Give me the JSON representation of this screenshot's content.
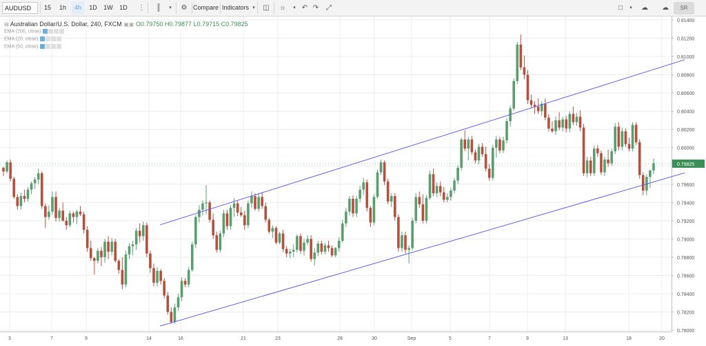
{
  "toolbar": {
    "symbol": "AUDUSD",
    "intervals": [
      "15",
      "1h",
      "4h",
      "1D",
      "1W",
      "1D"
    ],
    "active_interval": "4h",
    "compare_label": "Compare",
    "indicators_label": "Indicators",
    "sr_label": "SR"
  },
  "legend": {
    "title": "Australian Dollar/U.S. Dollar, 240, FXCM",
    "open": "O0.79750",
    "high": "H0.79877",
    "low": "L0.79715",
    "close": "C0.79825",
    "indicators": [
      "EMA (200, close)",
      "EMA (20, close)",
      "EMA (50, close)"
    ]
  },
  "colors": {
    "up": "#5a9e6f",
    "down": "#b5503c",
    "channel": "#5b5bf0",
    "price_badge": "#3d8f58",
    "grid": "#ececec"
  },
  "chart_data": {
    "type": "candlestick",
    "instrument": "AUDUSD",
    "timeframe": "240",
    "last_price": "0.79825",
    "y_ticks": [
      "0.81400",
      "0.81200",
      "0.81000",
      "0.80800",
      "0.80600",
      "0.80400",
      "0.80200",
      "0.80000",
      "0.79800",
      "0.79600",
      "0.79400",
      "0.79200",
      "0.79000",
      "0.78800",
      "0.78600",
      "0.78400",
      "0.78200",
      "0.78000"
    ],
    "ylim": [
      0.7798,
      0.8142
    ],
    "x_ticks": [
      "3",
      "7",
      "9",
      "14",
      "16",
      "21",
      "23",
      "28",
      "30",
      "Sep",
      "5",
      "7",
      "9",
      "13",
      "18",
      "20"
    ],
    "candles": [
      [
        0.7978,
        0.7979,
        0.7969,
        0.7974
      ],
      [
        0.7974,
        0.7986,
        0.7972,
        0.7984
      ],
      [
        0.7984,
        0.7987,
        0.7963,
        0.7966
      ],
      [
        0.7966,
        0.7968,
        0.7944,
        0.7946
      ],
      [
        0.7946,
        0.7949,
        0.7932,
        0.7936
      ],
      [
        0.7936,
        0.7951,
        0.7932,
        0.7947
      ],
      [
        0.7947,
        0.7954,
        0.794,
        0.7944
      ],
      [
        0.7944,
        0.7957,
        0.7941,
        0.7954
      ],
      [
        0.7954,
        0.7963,
        0.7949,
        0.7961
      ],
      [
        0.7961,
        0.7968,
        0.7955,
        0.7965
      ],
      [
        0.7965,
        0.7977,
        0.796,
        0.7972
      ],
      [
        0.7972,
        0.7974,
        0.7933,
        0.7936
      ],
      [
        0.7936,
        0.7939,
        0.7912,
        0.7924
      ],
      [
        0.7924,
        0.7937,
        0.7921,
        0.793
      ],
      [
        0.793,
        0.7952,
        0.7927,
        0.7946
      ],
      [
        0.7946,
        0.7952,
        0.7919,
        0.7923
      ],
      [
        0.7923,
        0.7934,
        0.7919,
        0.7931
      ],
      [
        0.7931,
        0.794,
        0.7919,
        0.792
      ],
      [
        0.792,
        0.7924,
        0.791,
        0.7915
      ],
      [
        0.7915,
        0.7931,
        0.7913,
        0.7928
      ],
      [
        0.7928,
        0.793,
        0.7918,
        0.7924
      ],
      [
        0.7924,
        0.7932,
        0.7916,
        0.793
      ],
      [
        0.793,
        0.7936,
        0.7925,
        0.7927
      ],
      [
        0.7927,
        0.793,
        0.7906,
        0.791
      ],
      [
        0.791,
        0.7914,
        0.7886,
        0.789
      ],
      [
        0.789,
        0.7898,
        0.7876,
        0.7879
      ],
      [
        0.7879,
        0.788,
        0.7861,
        0.7876
      ],
      [
        0.7876,
        0.789,
        0.7873,
        0.7887
      ],
      [
        0.7887,
        0.7891,
        0.787,
        0.788
      ],
      [
        0.788,
        0.79,
        0.7874,
        0.7897
      ],
      [
        0.7897,
        0.7903,
        0.7878,
        0.7886
      ],
      [
        0.7886,
        0.7901,
        0.7882,
        0.7897
      ],
      [
        0.7897,
        0.79,
        0.7874,
        0.7876
      ],
      [
        0.7876,
        0.7878,
        0.7862,
        0.7866
      ],
      [
        0.7866,
        0.788,
        0.7845,
        0.785
      ],
      [
        0.785,
        0.7887,
        0.7847,
        0.7883
      ],
      [
        0.7883,
        0.7895,
        0.7878,
        0.7892
      ],
      [
        0.7892,
        0.7898,
        0.7882,
        0.7894
      ],
      [
        0.7894,
        0.7912,
        0.7888,
        0.7909
      ],
      [
        0.7909,
        0.7917,
        0.7896,
        0.7903
      ],
      [
        0.7903,
        0.7919,
        0.7898,
        0.7915
      ],
      [
        0.7915,
        0.7918,
        0.788,
        0.7884
      ],
      [
        0.7884,
        0.7887,
        0.7863,
        0.7868
      ],
      [
        0.7868,
        0.7873,
        0.7848,
        0.7852
      ],
      [
        0.7852,
        0.7869,
        0.7848,
        0.7865
      ],
      [
        0.7865,
        0.7867,
        0.785,
        0.7854
      ],
      [
        0.7854,
        0.7857,
        0.7835,
        0.7838
      ],
      [
        0.7838,
        0.7842,
        0.7817,
        0.782
      ],
      [
        0.782,
        0.7825,
        0.7807,
        0.7809
      ],
      [
        0.7809,
        0.7829,
        0.7807,
        0.7825
      ],
      [
        0.7825,
        0.784,
        0.7821,
        0.7836
      ],
      [
        0.7836,
        0.7858,
        0.7832,
        0.7854
      ],
      [
        0.7854,
        0.7857,
        0.7847,
        0.785
      ],
      [
        0.785,
        0.7869,
        0.7847,
        0.7866
      ],
      [
        0.7866,
        0.7897,
        0.7864,
        0.7894
      ],
      [
        0.7894,
        0.7926,
        0.789,
        0.7924
      ],
      [
        0.7924,
        0.7937,
        0.7918,
        0.7932
      ],
      [
        0.7932,
        0.7942,
        0.7926,
        0.7939
      ],
      [
        0.7939,
        0.7959,
        0.7927,
        0.794
      ],
      [
        0.794,
        0.7942,
        0.7918,
        0.7921
      ],
      [
        0.7921,
        0.7928,
        0.79,
        0.7904
      ],
      [
        0.7904,
        0.7908,
        0.7885,
        0.7888
      ],
      [
        0.7888,
        0.7909,
        0.7885,
        0.7906
      ],
      [
        0.7906,
        0.7932,
        0.7902,
        0.7928
      ],
      [
        0.7928,
        0.7932,
        0.791,
        0.7914
      ],
      [
        0.7914,
        0.7937,
        0.791,
        0.7934
      ],
      [
        0.7934,
        0.7945,
        0.7924,
        0.7939
      ],
      [
        0.7939,
        0.7942,
        0.7925,
        0.7929
      ],
      [
        0.7929,
        0.7935,
        0.7924,
        0.7926
      ],
      [
        0.7926,
        0.7931,
        0.791,
        0.7915
      ],
      [
        0.7915,
        0.7942,
        0.7912,
        0.7939
      ],
      [
        0.7939,
        0.7952,
        0.7934,
        0.7947
      ],
      [
        0.7947,
        0.795,
        0.7931,
        0.7933
      ],
      [
        0.7933,
        0.795,
        0.793,
        0.7946
      ],
      [
        0.7946,
        0.7951,
        0.7933,
        0.7936
      ],
      [
        0.7936,
        0.794,
        0.7918,
        0.7921
      ],
      [
        0.7921,
        0.7923,
        0.7906,
        0.7908
      ],
      [
        0.7908,
        0.7915,
        0.7901,
        0.7912
      ],
      [
        0.7912,
        0.7914,
        0.7894,
        0.7896
      ],
      [
        0.7896,
        0.7908,
        0.7894,
        0.7906
      ],
      [
        0.7906,
        0.791,
        0.7886,
        0.7889
      ],
      [
        0.7889,
        0.7892,
        0.788,
        0.7884
      ],
      [
        0.7884,
        0.7889,
        0.7879,
        0.7886
      ],
      [
        0.7886,
        0.7894,
        0.788,
        0.7888
      ],
      [
        0.7888,
        0.7905,
        0.7885,
        0.7903
      ],
      [
        0.7903,
        0.7906,
        0.7884,
        0.7887
      ],
      [
        0.7887,
        0.79,
        0.7882,
        0.7896
      ],
      [
        0.7896,
        0.7904,
        0.7893,
        0.79
      ],
      [
        0.79,
        0.7904,
        0.7875,
        0.7878
      ],
      [
        0.7878,
        0.789,
        0.7871,
        0.7885
      ],
      [
        0.7885,
        0.7898,
        0.7881,
        0.7895
      ],
      [
        0.7895,
        0.7898,
        0.7883,
        0.7886
      ],
      [
        0.7886,
        0.7896,
        0.7883,
        0.7893
      ],
      [
        0.7893,
        0.7898,
        0.7886,
        0.789
      ],
      [
        0.789,
        0.7893,
        0.788,
        0.7882
      ],
      [
        0.7882,
        0.7891,
        0.788,
        0.789
      ],
      [
        0.789,
        0.7902,
        0.7886,
        0.7898
      ],
      [
        0.7898,
        0.7921,
        0.7896,
        0.7917
      ],
      [
        0.7917,
        0.7934,
        0.7913,
        0.793
      ],
      [
        0.793,
        0.7947,
        0.7926,
        0.7944
      ],
      [
        0.7944,
        0.7948,
        0.7924,
        0.7928
      ],
      [
        0.7928,
        0.7947,
        0.7924,
        0.7944
      ],
      [
        0.7944,
        0.7958,
        0.794,
        0.7954
      ],
      [
        0.7954,
        0.7967,
        0.7948,
        0.7962
      ],
      [
        0.7962,
        0.7965,
        0.793,
        0.7934
      ],
      [
        0.7934,
        0.7936,
        0.7913,
        0.7918
      ],
      [
        0.7918,
        0.7949,
        0.7915,
        0.7946
      ],
      [
        0.7946,
        0.7976,
        0.7944,
        0.7973
      ],
      [
        0.7973,
        0.7987,
        0.797,
        0.7984
      ],
      [
        0.7984,
        0.7986,
        0.7959,
        0.7963
      ],
      [
        0.7963,
        0.7966,
        0.7938,
        0.7941
      ],
      [
        0.7941,
        0.795,
        0.7935,
        0.7947
      ],
      [
        0.7947,
        0.795,
        0.792,
        0.7924
      ],
      [
        0.7924,
        0.7927,
        0.7886,
        0.789
      ],
      [
        0.789,
        0.7908,
        0.7886,
        0.7904
      ],
      [
        0.7904,
        0.7908,
        0.7884,
        0.7888
      ],
      [
        0.7888,
        0.7893,
        0.7873,
        0.789
      ],
      [
        0.789,
        0.7923,
        0.7888,
        0.792
      ],
      [
        0.792,
        0.795,
        0.7917,
        0.7946
      ],
      [
        0.7946,
        0.7952,
        0.7934,
        0.7938
      ],
      [
        0.7938,
        0.7949,
        0.7917,
        0.792
      ],
      [
        0.792,
        0.7948,
        0.7917,
        0.7945
      ],
      [
        0.7945,
        0.7975,
        0.7943,
        0.7971
      ],
      [
        0.7971,
        0.7977,
        0.7947,
        0.795
      ],
      [
        0.795,
        0.7962,
        0.7946,
        0.7958
      ],
      [
        0.7958,
        0.7963,
        0.7947,
        0.7951
      ],
      [
        0.7951,
        0.7957,
        0.794,
        0.7943
      ],
      [
        0.7943,
        0.795,
        0.794,
        0.7946
      ],
      [
        0.7946,
        0.7956,
        0.7942,
        0.7953
      ],
      [
        0.7953,
        0.7967,
        0.795,
        0.7964
      ],
      [
        0.7964,
        0.7981,
        0.796,
        0.7978
      ],
      [
        0.7978,
        0.8011,
        0.7975,
        0.8009
      ],
      [
        0.8009,
        0.8019,
        0.7996,
        0.7999
      ],
      [
        0.7999,
        0.8012,
        0.7986,
        0.8009
      ],
      [
        0.8009,
        0.8013,
        0.7992,
        0.7995
      ],
      [
        0.7995,
        0.7998,
        0.7983,
        0.7986
      ],
      [
        0.7986,
        0.8004,
        0.7982,
        0.8001
      ],
      [
        0.8001,
        0.8005,
        0.799,
        0.7993
      ],
      [
        0.7993,
        0.8001,
        0.7974,
        0.7977
      ],
      [
        0.7977,
        0.7982,
        0.7964,
        0.7967
      ],
      [
        0.7967,
        0.8003,
        0.7964,
        0.8
      ],
      [
        0.8,
        0.8013,
        0.7989,
        0.8009
      ],
      [
        0.8009,
        0.8012,
        0.7994,
        0.7997
      ],
      [
        0.7997,
        0.8012,
        0.7994,
        0.8008
      ],
      [
        0.8008,
        0.8032,
        0.8005,
        0.8029
      ],
      [
        0.8029,
        0.8046,
        0.8023,
        0.8043
      ],
      [
        0.8043,
        0.8076,
        0.8041,
        0.8073
      ],
      [
        0.8073,
        0.8116,
        0.807,
        0.8113
      ],
      [
        0.8113,
        0.8124,
        0.8085,
        0.8088
      ],
      [
        0.8088,
        0.8101,
        0.8075,
        0.808
      ],
      [
        0.808,
        0.8085,
        0.8048,
        0.8052
      ],
      [
        0.8052,
        0.8058,
        0.8044,
        0.8047
      ],
      [
        0.8047,
        0.8051,
        0.8037,
        0.8045
      ],
      [
        0.8045,
        0.8054,
        0.8037,
        0.804
      ],
      [
        0.804,
        0.8051,
        0.8035,
        0.8048
      ],
      [
        0.8048,
        0.8054,
        0.803,
        0.8033
      ],
      [
        0.8033,
        0.8037,
        0.8018,
        0.8021
      ],
      [
        0.8021,
        0.8029,
        0.8016,
        0.8018
      ],
      [
        0.8018,
        0.8034,
        0.8014,
        0.803
      ],
      [
        0.803,
        0.8039,
        0.8019,
        0.8022
      ],
      [
        0.8022,
        0.8034,
        0.8018,
        0.8031
      ],
      [
        0.8031,
        0.8035,
        0.8017,
        0.8021
      ],
      [
        0.8021,
        0.804,
        0.8017,
        0.8037
      ],
      [
        0.8037,
        0.8045,
        0.8025,
        0.8028
      ],
      [
        0.8028,
        0.8038,
        0.8024,
        0.8034
      ],
      [
        0.8034,
        0.8041,
        0.8018,
        0.8022
      ],
      [
        0.8022,
        0.8026,
        0.7969,
        0.7972
      ],
      [
        0.7972,
        0.799,
        0.7968,
        0.7986
      ],
      [
        0.7986,
        0.799,
        0.7969,
        0.7972
      ],
      [
        0.7972,
        0.8002,
        0.7969,
        0.7999
      ],
      [
        0.7999,
        0.8003,
        0.799,
        0.7994
      ],
      [
        0.7994,
        0.7997,
        0.797,
        0.7973
      ],
      [
        0.7973,
        0.799,
        0.7969,
        0.7987
      ],
      [
        0.7987,
        0.7998,
        0.7979,
        0.7983
      ],
      [
        0.7983,
        0.7999,
        0.798,
        0.7996
      ],
      [
        0.7996,
        0.8027,
        0.7993,
        0.8023
      ],
      [
        0.8023,
        0.8028,
        0.7997,
        0.8001
      ],
      [
        0.8001,
        0.8022,
        0.7997,
        0.8018
      ],
      [
        0.8018,
        0.8021,
        0.8001,
        0.8004
      ],
      [
        0.8004,
        0.8011,
        0.7996,
        0.7999
      ],
      [
        0.7999,
        0.8028,
        0.7996,
        0.8025
      ],
      [
        0.8025,
        0.8028,
        0.8003,
        0.8006
      ],
      [
        0.8006,
        0.8009,
        0.7966,
        0.797
      ],
      [
        0.797,
        0.7973,
        0.7948,
        0.7953
      ],
      [
        0.7953,
        0.7971,
        0.7948,
        0.7968
      ],
      [
        0.7968,
        0.7976,
        0.7956,
        0.7975
      ],
      [
        0.7975,
        0.7988,
        0.7971,
        0.7983
      ]
    ],
    "channel": {
      "upper": [
        [
          0.09,
          0.79155
        ],
        [
          0.97,
          0.80965
        ]
      ],
      "lower": [
        [
          0.09,
          0.78045
        ],
        [
          0.97,
          0.79725
        ]
      ]
    }
  }
}
